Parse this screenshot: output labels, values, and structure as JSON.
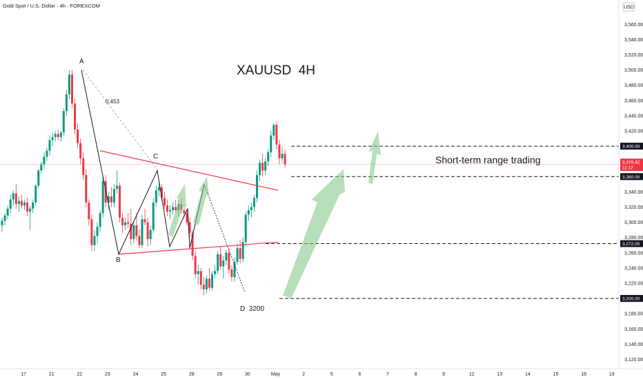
{
  "symbol_title": "Gold Spot / U.S. Dollar · 4h · FOREXCOM",
  "currency": "USD",
  "colors": {
    "up": "#089981",
    "down": "#f23645",
    "wave": "#131722",
    "triangle": "#f23645",
    "arrow": "#7cc47f",
    "level": "#131722",
    "fib": "#9a9a9a"
  },
  "chart_data": {
    "type": "candlestick",
    "title": "XAUUSD  4H",
    "ylim": [
      3110,
      3580
    ],
    "y_ticks": [
      3560,
      3540,
      3520,
      3500,
      3480,
      3460,
      3440,
      3420,
      3400,
      3380,
      3360,
      3340,
      3320,
      3300,
      3280,
      3260,
      3240,
      3220,
      3200,
      3180,
      3160,
      3140,
      3120
    ],
    "y_tick_labels": [
      "3,560.00",
      "3,540.00",
      "3,520.00",
      "3,500.00",
      "3,480.00",
      "3,460.00",
      "3,440.00",
      "3,420.00",
      "3,400.00",
      "3,380.00",
      "3,360.00",
      "3,340.00",
      "3,320.00",
      "3,300.00",
      "3,280.00",
      "3,260.00",
      "3,240.00",
      "3,220.00",
      "3,200.00",
      "3,180.00",
      "3,160.00",
      "3,140.00",
      "3,120.00"
    ],
    "x_labels": [
      "17",
      "21",
      "22",
      "23",
      "24",
      "25",
      "28",
      "29",
      "30",
      "May",
      "2",
      "5",
      "6",
      "7",
      "8",
      "9",
      "12",
      "13",
      "14",
      "15",
      "16",
      "19"
    ],
    "x_label_index": [
      2,
      12,
      22,
      32,
      42,
      52,
      62,
      72,
      82,
      92,
      102,
      112,
      122,
      132,
      142,
      152,
      162,
      172,
      182,
      192,
      202,
      212
    ],
    "candles": [
      {
        "o": 3296,
        "h": 3306,
        "l": 3288,
        "c": 3302
      },
      {
        "o": 3302,
        "h": 3312,
        "l": 3296,
        "c": 3309
      },
      {
        "o": 3309,
        "h": 3322,
        "l": 3304,
        "c": 3318
      },
      {
        "o": 3318,
        "h": 3336,
        "l": 3312,
        "c": 3330
      },
      {
        "o": 3330,
        "h": 3342,
        "l": 3322,
        "c": 3338
      },
      {
        "o": 3338,
        "h": 3350,
        "l": 3318,
        "c": 3324
      },
      {
        "o": 3324,
        "h": 3334,
        "l": 3314,
        "c": 3328
      },
      {
        "o": 3328,
        "h": 3336,
        "l": 3318,
        "c": 3322
      },
      {
        "o": 3322,
        "h": 3330,
        "l": 3316,
        "c": 3326
      },
      {
        "o": 3326,
        "h": 3332,
        "l": 3308,
        "c": 3314
      },
      {
        "o": 3314,
        "h": 3322,
        "l": 3290,
        "c": 3318
      },
      {
        "o": 3318,
        "h": 3330,
        "l": 3312,
        "c": 3326
      },
      {
        "o": 3326,
        "h": 3350,
        "l": 3322,
        "c": 3348
      },
      {
        "o": 3348,
        "h": 3370,
        "l": 3344,
        "c": 3368
      },
      {
        "o": 3368,
        "h": 3380,
        "l": 3364,
        "c": 3376
      },
      {
        "o": 3376,
        "h": 3392,
        "l": 3370,
        "c": 3386
      },
      {
        "o": 3386,
        "h": 3398,
        "l": 3380,
        "c": 3394
      },
      {
        "o": 3394,
        "h": 3414,
        "l": 3388,
        "c": 3408
      },
      {
        "o": 3408,
        "h": 3418,
        "l": 3400,
        "c": 3412
      },
      {
        "o": 3412,
        "h": 3420,
        "l": 3406,
        "c": 3416
      },
      {
        "o": 3416,
        "h": 3422,
        "l": 3408,
        "c": 3412
      },
      {
        "o": 3412,
        "h": 3420,
        "l": 3406,
        "c": 3418
      },
      {
        "o": 3418,
        "h": 3450,
        "l": 3414,
        "c": 3446
      },
      {
        "o": 3446,
        "h": 3474,
        "l": 3440,
        "c": 3468
      },
      {
        "o": 3468,
        "h": 3500,
        "l": 3462,
        "c": 3494
      },
      {
        "o": 3494,
        "h": 3500,
        "l": 3450,
        "c": 3456
      },
      {
        "o": 3456,
        "h": 3462,
        "l": 3416,
        "c": 3422
      },
      {
        "o": 3422,
        "h": 3430,
        "l": 3398,
        "c": 3404
      },
      {
        "o": 3404,
        "h": 3410,
        "l": 3376,
        "c": 3384
      },
      {
        "o": 3384,
        "h": 3392,
        "l": 3356,
        "c": 3362
      },
      {
        "o": 3362,
        "h": 3370,
        "l": 3320,
        "c": 3326
      },
      {
        "o": 3326,
        "h": 3330,
        "l": 3296,
        "c": 3304
      },
      {
        "o": 3304,
        "h": 3310,
        "l": 3262,
        "c": 3270
      },
      {
        "o": 3270,
        "h": 3290,
        "l": 3262,
        "c": 3282
      },
      {
        "o": 3282,
        "h": 3300,
        "l": 3272,
        "c": 3294
      },
      {
        "o": 3294,
        "h": 3316,
        "l": 3288,
        "c": 3312
      },
      {
        "o": 3312,
        "h": 3360,
        "l": 3306,
        "c": 3354
      },
      {
        "o": 3354,
        "h": 3362,
        "l": 3320,
        "c": 3326
      },
      {
        "o": 3326,
        "h": 3340,
        "l": 3316,
        "c": 3334
      },
      {
        "o": 3334,
        "h": 3346,
        "l": 3320,
        "c": 3326
      },
      {
        "o": 3326,
        "h": 3350,
        "l": 3320,
        "c": 3344
      },
      {
        "o": 3344,
        "h": 3368,
        "l": 3338,
        "c": 3348
      },
      {
        "o": 3348,
        "h": 3352,
        "l": 3300,
        "c": 3306
      },
      {
        "o": 3306,
        "h": 3312,
        "l": 3286,
        "c": 3296
      },
      {
        "o": 3296,
        "h": 3306,
        "l": 3290,
        "c": 3300
      },
      {
        "o": 3300,
        "h": 3312,
        "l": 3292,
        "c": 3298
      },
      {
        "o": 3298,
        "h": 3318,
        "l": 3270,
        "c": 3278
      },
      {
        "o": 3278,
        "h": 3300,
        "l": 3272,
        "c": 3296
      },
      {
        "o": 3296,
        "h": 3312,
        "l": 3276,
        "c": 3282
      },
      {
        "o": 3282,
        "h": 3290,
        "l": 3266,
        "c": 3270
      },
      {
        "o": 3270,
        "h": 3310,
        "l": 3266,
        "c": 3304
      },
      {
        "o": 3304,
        "h": 3318,
        "l": 3296,
        "c": 3300
      },
      {
        "o": 3300,
        "h": 3306,
        "l": 3268,
        "c": 3278
      },
      {
        "o": 3278,
        "h": 3296,
        "l": 3270,
        "c": 3290
      },
      {
        "o": 3290,
        "h": 3332,
        "l": 3286,
        "c": 3326
      },
      {
        "o": 3326,
        "h": 3348,
        "l": 3320,
        "c": 3342
      },
      {
        "o": 3342,
        "h": 3352,
        "l": 3334,
        "c": 3346
      },
      {
        "o": 3346,
        "h": 3350,
        "l": 3328,
        "c": 3332
      },
      {
        "o": 3332,
        "h": 3340,
        "l": 3318,
        "c": 3322
      },
      {
        "o": 3322,
        "h": 3330,
        "l": 3308,
        "c": 3314
      },
      {
        "o": 3314,
        "h": 3322,
        "l": 3304,
        "c": 3316
      },
      {
        "o": 3316,
        "h": 3326,
        "l": 3310,
        "c": 3320
      },
      {
        "o": 3320,
        "h": 3330,
        "l": 3312,
        "c": 3316
      },
      {
        "o": 3316,
        "h": 3330,
        "l": 3308,
        "c": 3324
      },
      {
        "o": 3324,
        "h": 3332,
        "l": 3312,
        "c": 3316
      },
      {
        "o": 3316,
        "h": 3322,
        "l": 3306,
        "c": 3312
      },
      {
        "o": 3312,
        "h": 3318,
        "l": 3296,
        "c": 3300
      },
      {
        "o": 3300,
        "h": 3306,
        "l": 3280,
        "c": 3286
      },
      {
        "o": 3286,
        "h": 3290,
        "l": 3250,
        "c": 3256
      },
      {
        "o": 3256,
        "h": 3262,
        "l": 3226,
        "c": 3232
      },
      {
        "o": 3232,
        "h": 3244,
        "l": 3218,
        "c": 3236
      },
      {
        "o": 3236,
        "h": 3240,
        "l": 3212,
        "c": 3218
      },
      {
        "o": 3218,
        "h": 3228,
        "l": 3204,
        "c": 3212
      },
      {
        "o": 3212,
        "h": 3230,
        "l": 3206,
        "c": 3226
      },
      {
        "o": 3226,
        "h": 3240,
        "l": 3210,
        "c": 3214
      },
      {
        "o": 3214,
        "h": 3236,
        "l": 3210,
        "c": 3232
      },
      {
        "o": 3232,
        "h": 3244,
        "l": 3226,
        "c": 3236
      },
      {
        "o": 3236,
        "h": 3262,
        "l": 3232,
        "c": 3258
      },
      {
        "o": 3258,
        "h": 3268,
        "l": 3238,
        "c": 3242
      },
      {
        "o": 3242,
        "h": 3256,
        "l": 3226,
        "c": 3250
      },
      {
        "o": 3250,
        "h": 3264,
        "l": 3244,
        "c": 3260
      },
      {
        "o": 3260,
        "h": 3266,
        "l": 3232,
        "c": 3238
      },
      {
        "o": 3238,
        "h": 3244,
        "l": 3222,
        "c": 3228
      },
      {
        "o": 3228,
        "h": 3254,
        "l": 3222,
        "c": 3248
      },
      {
        "o": 3248,
        "h": 3272,
        "l": 3244,
        "c": 3266
      },
      {
        "o": 3266,
        "h": 3276,
        "l": 3246,
        "c": 3252
      },
      {
        "o": 3252,
        "h": 3280,
        "l": 3248,
        "c": 3274
      },
      {
        "o": 3274,
        "h": 3314,
        "l": 3268,
        "c": 3310
      },
      {
        "o": 3310,
        "h": 3322,
        "l": 3302,
        "c": 3316
      },
      {
        "o": 3316,
        "h": 3326,
        "l": 3306,
        "c": 3320
      },
      {
        "o": 3320,
        "h": 3336,
        "l": 3314,
        "c": 3332
      },
      {
        "o": 3332,
        "h": 3368,
        "l": 3326,
        "c": 3362
      },
      {
        "o": 3362,
        "h": 3382,
        "l": 3354,
        "c": 3378
      },
      {
        "o": 3378,
        "h": 3390,
        "l": 3360,
        "c": 3368
      },
      {
        "o": 3368,
        "h": 3384,
        "l": 3362,
        "c": 3380
      },
      {
        "o": 3380,
        "h": 3396,
        "l": 3374,
        "c": 3392
      },
      {
        "o": 3392,
        "h": 3420,
        "l": 3386,
        "c": 3414
      },
      {
        "o": 3414,
        "h": 3430,
        "l": 3408,
        "c": 3428
      },
      {
        "o": 3428,
        "h": 3432,
        "l": 3396,
        "c": 3402
      },
      {
        "o": 3402,
        "h": 3408,
        "l": 3376,
        "c": 3384
      },
      {
        "o": 3384,
        "h": 3398,
        "l": 3378,
        "c": 3390
      },
      {
        "o": 3390,
        "h": 3396,
        "l": 3372,
        "c": 3376
      }
    ],
    "levels": [
      {
        "price": 3400,
        "label": "3,400.00"
      },
      {
        "price": 3360,
        "label": "3,360.00"
      },
      {
        "price": 3272,
        "label": "3,272.00"
      },
      {
        "price": 3200,
        "label": "3,200.00"
      }
    ],
    "current_price": {
      "price": 3376.42,
      "label": "3,376.42",
      "timer": "11:17"
    },
    "wave_labels": [
      "A",
      "B",
      "C",
      "D  3200"
    ],
    "fib_label": "0.453",
    "annotation": "Short-term range trading"
  }
}
